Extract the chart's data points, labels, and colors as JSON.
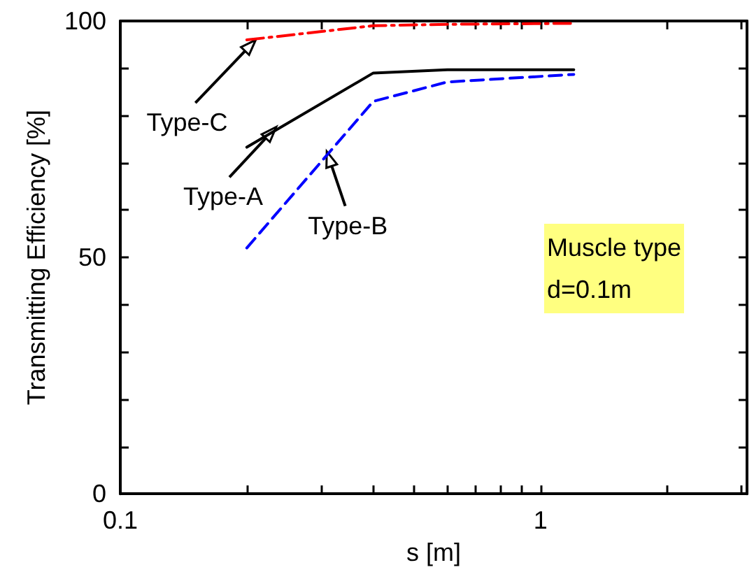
{
  "chart_data": {
    "type": "line",
    "xlabel": "s [m]",
    "ylabel": "Transmitting Efficiency [%]",
    "log": "x",
    "xlim": [
      0.1,
      3.1
    ],
    "ylim": [
      0,
      100
    ],
    "xticks": [
      0.1,
      {
        "value": 0.2,
        "label": null
      },
      {
        "value": 0.3,
        "label": null
      },
      {
        "value": 0.4,
        "label": null
      },
      {
        "value": 0.5,
        "label": null
      },
      {
        "value": 0.6,
        "label": null
      },
      {
        "value": 0.7,
        "label": null
      },
      {
        "value": 0.8,
        "label": null
      },
      {
        "value": 0.9,
        "label": null
      },
      1,
      {
        "value": 2,
        "label": null
      },
      {
        "value": 3,
        "label": null
      }
    ],
    "yticks": [
      0,
      {
        "value": 10,
        "label": null
      },
      {
        "value": 20,
        "label": null
      },
      {
        "value": 30,
        "label": null
      },
      {
        "value": 40,
        "label": null
      },
      50,
      {
        "value": 60,
        "label": null
      },
      {
        "value": 70,
        "label": null
      },
      {
        "value": 80,
        "label": null
      },
      {
        "value": 90,
        "label": null
      },
      100
    ],
    "grid": false,
    "marker": "none",
    "series": [
      {
        "color": "#000000",
        "line_style": "solid",
        "x": [
          0.2,
          0.4,
          0.6,
          1.2
        ],
        "values": [
          73.3,
          89,
          89.7,
          89.7
        ]
      },
      {
        "color": "#0000ff",
        "line_style": "dashed",
        "x": [
          0.2,
          0.4,
          0.6,
          1.2
        ],
        "values": [
          52,
          83,
          87.1,
          88.7
        ]
      },
      {
        "color": "#ff0000",
        "line_style": "dashdot",
        "x": [
          0.2,
          0.4,
          0.6,
          1.2
        ],
        "values": [
          96,
          99,
          99.3,
          99.5
        ]
      }
    ],
    "annotations": [
      {
        "text": "Type-C",
        "x": 0.21,
        "y": 96
      },
      {
        "text": "Type-A",
        "x": 0.235,
        "y": 77.6
      },
      {
        "text": "Type-B",
        "x": 0.31,
        "y": 72.4
      },
      "Muscle type\nd=0.1m"
    ]
  }
}
